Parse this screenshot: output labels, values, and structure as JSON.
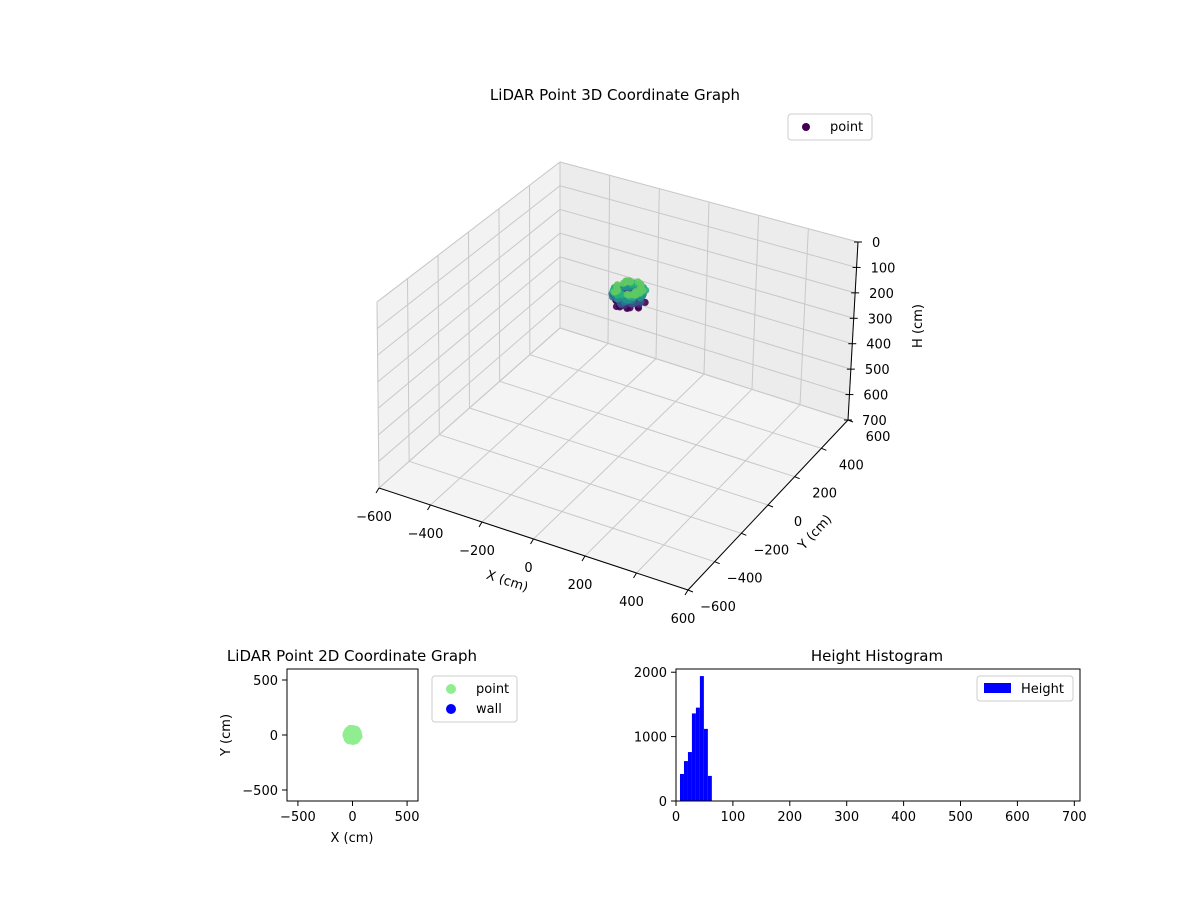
{
  "chart_data": [
    {
      "type": "scatter",
      "projection": "3d",
      "title": "LiDAR Point 3D Coordinate Graph",
      "xlabel": "X (cm)",
      "ylabel": "Y (cm)",
      "zlabel": "H (cm)",
      "xlim": [
        -600,
        600
      ],
      "ylim": [
        -600,
        600
      ],
      "zlim": [
        0,
        700
      ],
      "z_axis_inverted": true,
      "xticks": [
        -600,
        -400,
        -200,
        0,
        200,
        400,
        600
      ],
      "yticks": [
        -600,
        -400,
        -200,
        0,
        200,
        400,
        600
      ],
      "zticks": [
        0,
        100,
        200,
        300,
        400,
        500,
        600,
        700
      ],
      "grid": true,
      "legend": {
        "position": "top-right",
        "entries": [
          "point"
        ]
      },
      "colormap": "viridis",
      "series": [
        {
          "name": "point",
          "color": "#440154",
          "shape": "ring",
          "center": [
            0,
            0
          ],
          "radius": 45,
          "height_range": [
            0,
            60
          ]
        }
      ]
    },
    {
      "type": "scatter",
      "title": "LiDAR Point 2D Coordinate Graph",
      "xlabel": "X (cm)",
      "ylabel": "Y (cm)",
      "xlim": [
        -600,
        600
      ],
      "ylim": [
        -600,
        600
      ],
      "xticks": [
        -500,
        0,
        500
      ],
      "yticks": [
        -500,
        0,
        500
      ],
      "legend": {
        "position": "outside-right",
        "entries": [
          "point",
          "wall"
        ]
      },
      "series": [
        {
          "name": "point",
          "color": "#90ee90",
          "center": [
            0,
            0
          ],
          "radius": 50
        },
        {
          "name": "wall",
          "color": "#0000ff",
          "points": []
        }
      ]
    },
    {
      "type": "bar",
      "title": "Height Histogram",
      "xlabel": "",
      "ylabel": "",
      "xlim": [
        0,
        710
      ],
      "ylim": [
        0,
        2050
      ],
      "xticks": [
        0,
        100,
        200,
        300,
        400,
        500,
        600,
        700
      ],
      "yticks": [
        0,
        1000,
        2000
      ],
      "legend": {
        "position": "top-right",
        "entries": [
          "Height"
        ]
      },
      "series": [
        {
          "name": "Height",
          "color": "#0000ff",
          "bin_edges": [
            7,
            14,
            21,
            28,
            35,
            42,
            49,
            56,
            63
          ],
          "counts": [
            420,
            620,
            760,
            1360,
            1450,
            1940,
            1120,
            390
          ]
        }
      ]
    }
  ]
}
